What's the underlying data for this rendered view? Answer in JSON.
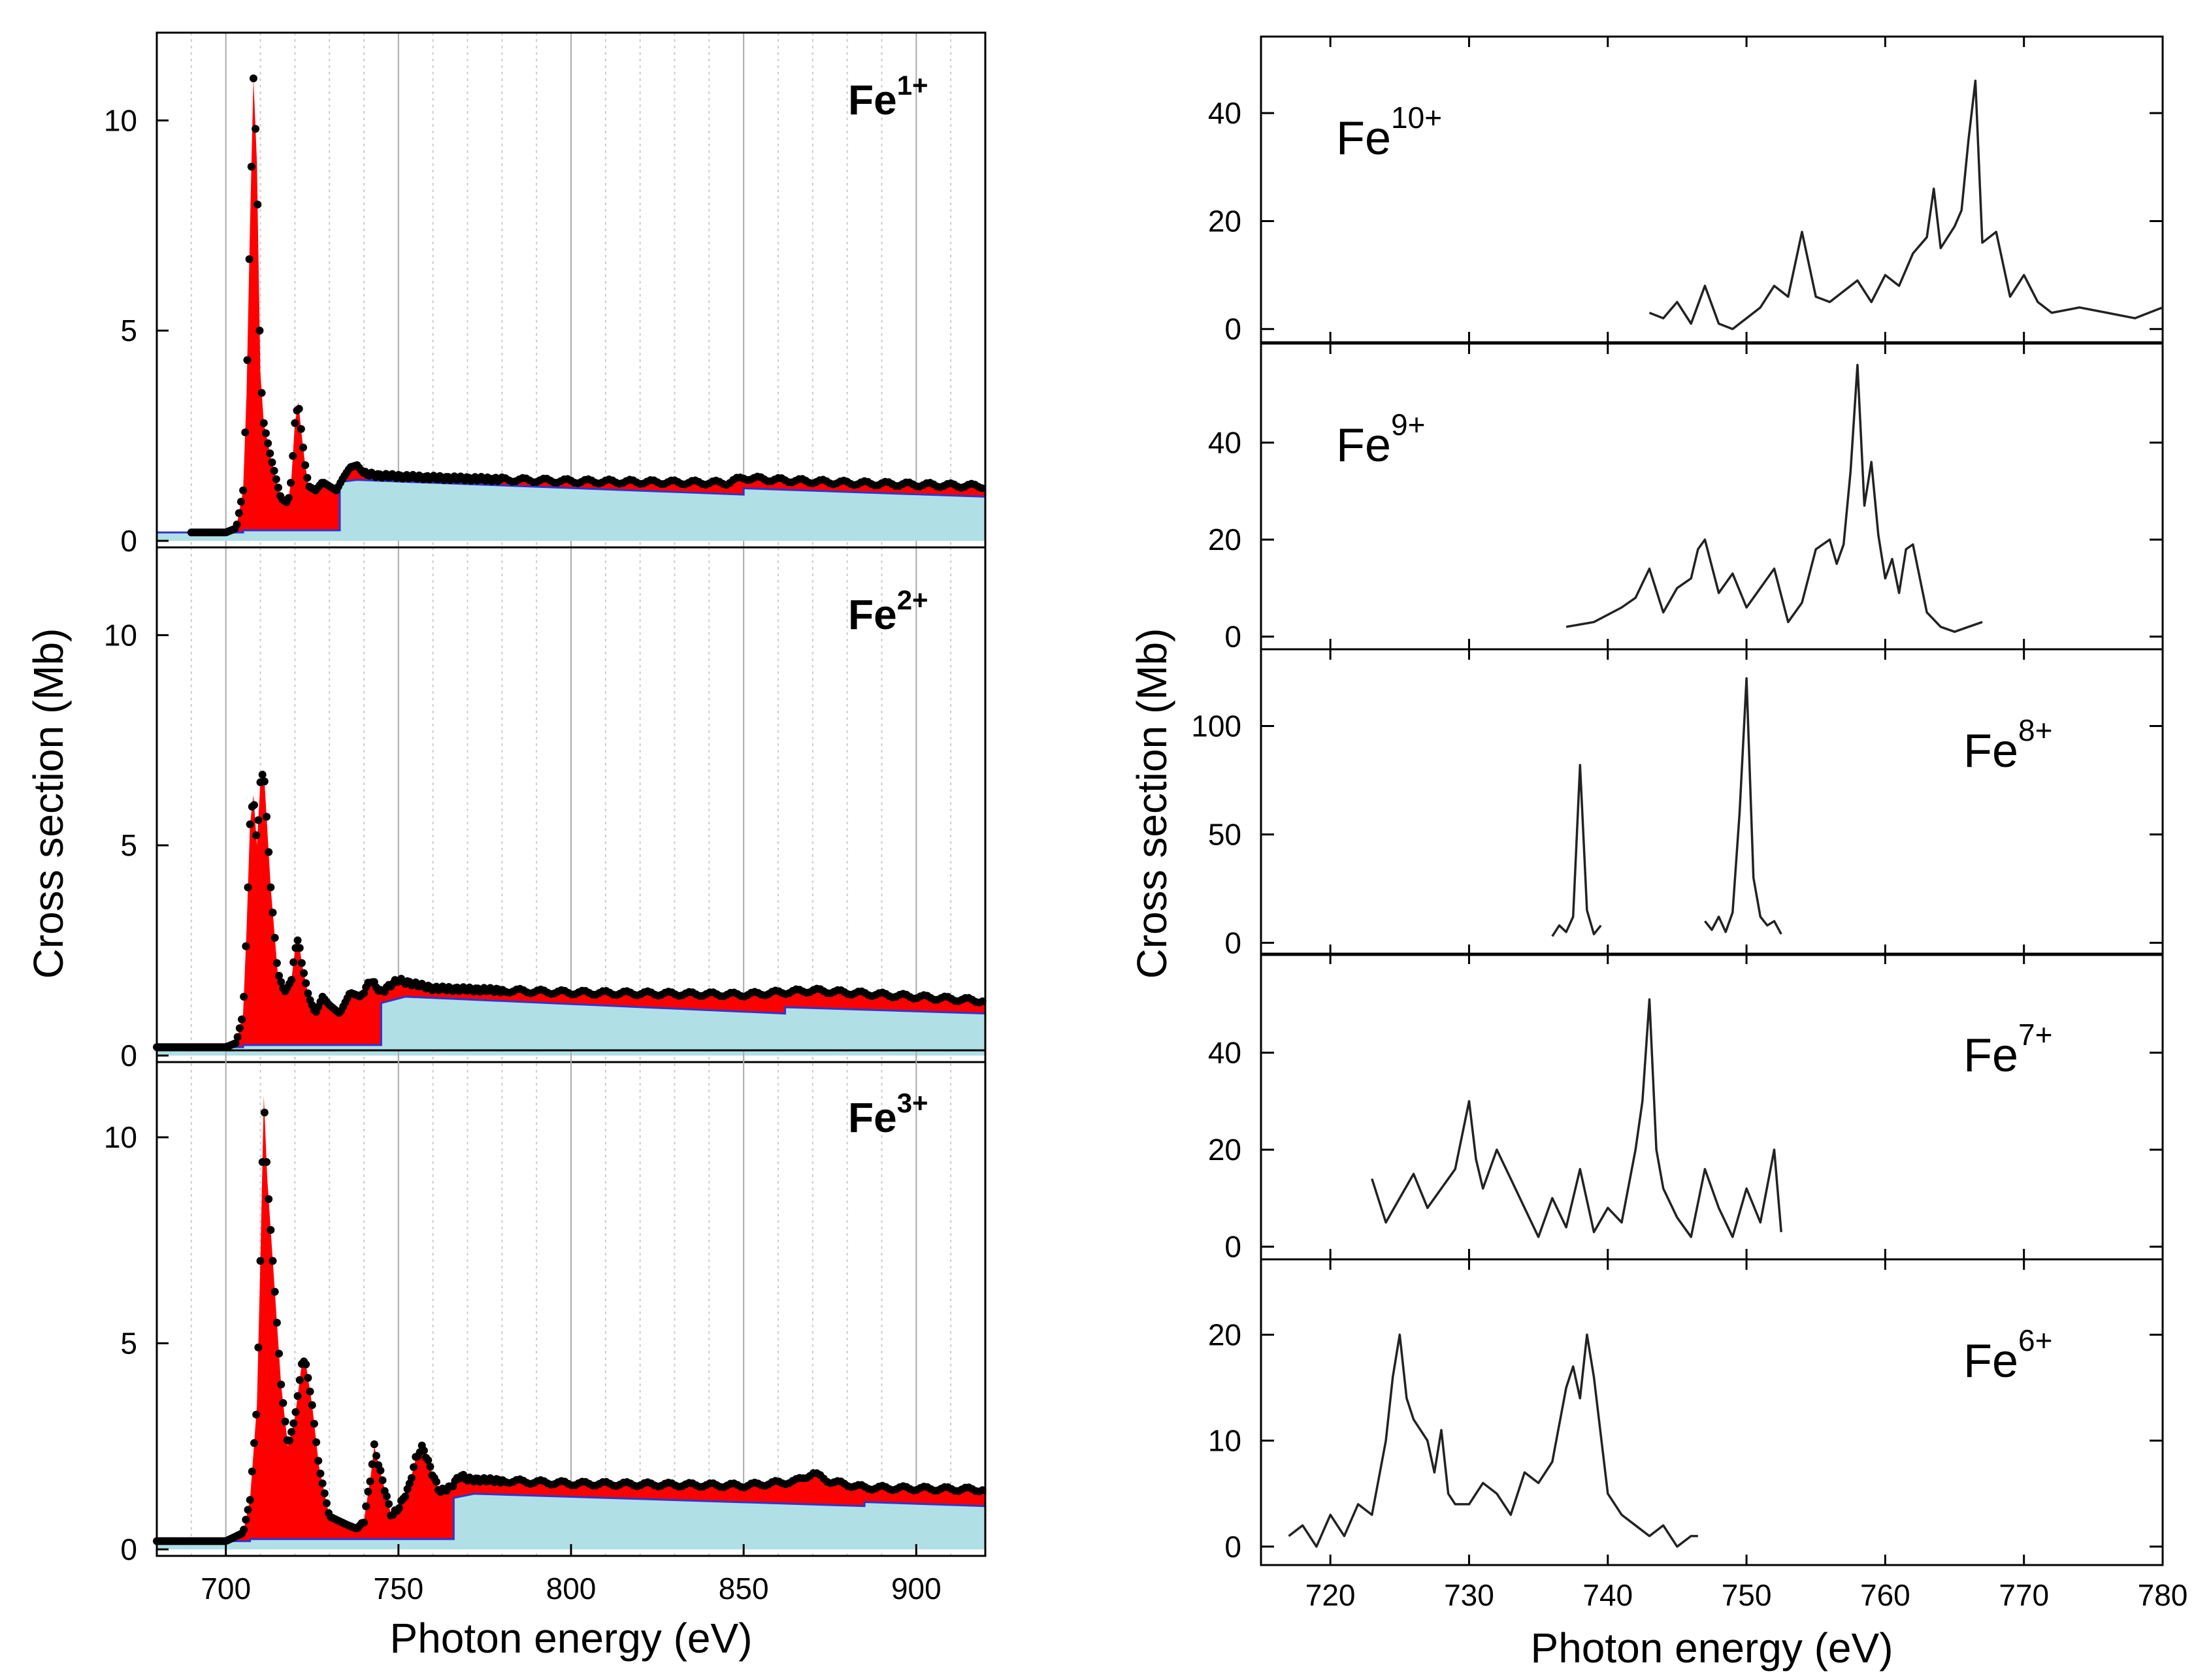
{
  "chart_data": [
    {
      "type": "area",
      "panel_group": "left",
      "xlabel": "Photon energy (eV)",
      "ylabel": "Cross section (Mb)",
      "xlim": [
        680,
        920
      ],
      "x_ticks": [
        700,
        750,
        800,
        850,
        900
      ],
      "x_tick_labels": [
        "700",
        "750",
        "800",
        "850",
        "900"
      ],
      "grid": "vertical",
      "fill_colors": {
        "resonant": "#ff0000",
        "direct": "#b0e0e6",
        "direct_edge": "#3333cc",
        "points": "#000000"
      },
      "panels": [
        {
          "label_base": "Fe",
          "label_charge": "1+",
          "ylim": [
            0,
            12
          ],
          "y_ticks": [
            0,
            5,
            10
          ],
          "y_tick_labels": [
            "0",
            "5",
            "10"
          ],
          "background": {
            "x": [
              680,
              705,
              705,
              733,
              733,
              738,
              850,
              850,
              920
            ],
            "y": [
              0.2,
              0.2,
              0.25,
              0.25,
              1.4,
              1.45,
              1.1,
              1.25,
              1.05
            ]
          },
          "total": {
            "x": [
              680,
              700,
              703,
              705,
              706,
              707,
              708,
              709,
              710,
              711,
              713,
              716,
              718,
              719,
              720,
              721,
              722,
              723,
              724,
              726,
              728,
              730,
              732,
              734,
              736,
              738,
              740,
              745,
              760,
              800,
              845,
              850,
              860,
              880,
              920
            ],
            "y": [
              0.2,
              0.2,
              0.3,
              1.2,
              3.5,
              7.5,
              11.0,
              9.0,
              4.0,
              2.8,
              2.0,
              1.0,
              0.9,
              1.5,
              2.8,
              3.3,
              2.5,
              1.8,
              1.3,
              1.2,
              1.4,
              1.3,
              1.2,
              1.5,
              1.75,
              1.8,
              1.6,
              1.55,
              1.5,
              1.42,
              1.38,
              1.5,
              1.45,
              1.38,
              1.3
            ]
          }
        },
        {
          "label_base": "Fe",
          "label_charge": "2+",
          "ylim": [
            0,
            12
          ],
          "y_ticks": [
            0,
            5,
            10
          ],
          "y_tick_labels": [
            "0",
            "5",
            "10"
          ],
          "background": {
            "x": [
              680,
              705,
              705,
              745,
              745,
              752,
              862,
              862,
              920
            ],
            "y": [
              0.2,
              0.2,
              0.25,
              0.25,
              1.25,
              1.4,
              1.0,
              1.15,
              1.0
            ]
          },
          "total": {
            "x": [
              680,
              690,
              700,
              703,
              705,
              706,
              707,
              708,
              709,
              710,
              711,
              713,
              715,
              717,
              719,
              720,
              721,
              722,
              724,
              726,
              728,
              730,
              733,
              736,
              739,
              742,
              745,
              748,
              750,
              752,
              760,
              800,
              850,
              870,
              900,
              920
            ],
            "y": [
              0.2,
              0.2,
              0.2,
              0.3,
              1.0,
              3.0,
              5.5,
              6.2,
              5.0,
              6.5,
              6.8,
              4.0,
              2.0,
              1.5,
              1.8,
              2.5,
              2.8,
              2.2,
              1.4,
              1.0,
              1.4,
              1.2,
              1.0,
              1.5,
              1.4,
              1.8,
              1.5,
              1.7,
              1.8,
              1.75,
              1.6,
              1.5,
              1.45,
              1.55,
              1.4,
              1.3
            ]
          }
        },
        {
          "label_base": "Fe",
          "label_charge": "3+",
          "ylim": [
            0,
            12
          ],
          "y_ticks": [
            0,
            5,
            10
          ],
          "y_tick_labels": [
            "0",
            "5",
            "10"
          ],
          "background": {
            "x": [
              680,
              707,
              707,
              766,
              766,
              772,
              885,
              885,
              920
            ],
            "y": [
              0.2,
              0.2,
              0.25,
              0.25,
              1.25,
              1.35,
              1.05,
              1.15,
              1.05
            ]
          },
          "total": {
            "x": [
              680,
              690,
              700,
              705,
              707,
              709,
              710,
              711,
              712,
              714,
              716,
              718,
              720,
              722,
              723,
              725,
              727,
              730,
              735,
              738,
              740,
              742,
              743,
              745,
              748,
              750,
              753,
              755,
              757,
              760,
              762,
              765,
              768,
              770,
              800,
              850,
              865,
              870,
              875,
              885,
              920
            ],
            "y": [
              0.2,
              0.2,
              0.2,
              0.4,
              1.2,
              3.5,
              7.0,
              11.0,
              9.0,
              6.5,
              4.0,
              2.5,
              3.2,
              4.5,
              4.6,
              3.5,
              2.0,
              0.8,
              0.6,
              0.5,
              0.7,
              1.8,
              2.5,
              1.8,
              0.8,
              1.0,
              1.5,
              2.2,
              2.5,
              1.8,
              1.4,
              1.5,
              1.8,
              1.7,
              1.6,
              1.55,
              1.65,
              1.85,
              1.65,
              1.5,
              1.45
            ]
          }
        }
      ]
    },
    {
      "type": "line",
      "panel_group": "right",
      "xlabel": "Photon energy (eV)",
      "ylabel": "Cross section (Mb)",
      "xlim": [
        715,
        780
      ],
      "x_ticks": [
        720,
        730,
        740,
        750,
        760,
        770,
        780
      ],
      "x_tick_labels": [
        "720",
        "730",
        "740",
        "750",
        "760",
        "770",
        "780"
      ],
      "grid": "none",
      "line_color": "#222222",
      "panels": [
        {
          "label_base": "Fe",
          "label_charge": "10+",
          "ylim": [
            -1,
            52
          ],
          "y_ticks": [
            0,
            20,
            40
          ],
          "y_tick_labels": [
            "0",
            "20",
            "40"
          ],
          "series": {
            "x": [
              743,
              744,
              745,
              746,
              747,
              748,
              749,
              750,
              751,
              752,
              753,
              754,
              755,
              756,
              757,
              758,
              759,
              760,
              761,
              762,
              763,
              763.5,
              764,
              765,
              765.5,
              766,
              766.5,
              767,
              768,
              769,
              770,
              771,
              772,
              774,
              776,
              778,
              780
            ],
            "y": [
              3,
              2,
              5,
              1,
              8,
              1,
              0,
              2,
              4,
              8,
              6,
              18,
              6,
              5,
              7,
              9,
              5,
              10,
              8,
              14,
              17,
              26,
              15,
              19,
              22,
              35,
              46,
              16,
              18,
              6,
              10,
              5,
              3,
              4,
              3,
              2,
              4
            ]
          }
        },
        {
          "label_base": "Fe",
          "label_charge": "9+",
          "ylim": [
            -1,
            58
          ],
          "y_ticks": [
            0,
            20,
            40
          ],
          "y_tick_labels": [
            "0",
            "20",
            "40"
          ],
          "series": {
            "x": [
              737,
              739,
              741,
              742,
              743,
              744,
              745,
              746,
              746.5,
              747,
              748,
              749,
              750,
              751,
              752,
              753,
              754,
              755,
              756,
              756.5,
              757,
              757.5,
              758,
              758.5,
              759,
              759.5,
              760,
              760.5,
              761,
              761.5,
              762,
              763,
              764,
              765,
              766,
              767
            ],
            "y": [
              2,
              3,
              6,
              8,
              14,
              5,
              10,
              12,
              18,
              20,
              9,
              13,
              6,
              10,
              14,
              3,
              7,
              18,
              20,
              15,
              19,
              34,
              56,
              27,
              36,
              21,
              12,
              16,
              9,
              18,
              19,
              5,
              2,
              1,
              2,
              3
            ]
          }
        },
        {
          "label_base": "Fe",
          "label_charge": "8+",
          "ylim": [
            -2,
            130
          ],
          "y_ticks": [
            0,
            50,
            100
          ],
          "y_tick_labels": [
            "0",
            "50",
            "100"
          ],
          "series_segments": [
            {
              "x": [
                736,
                736.5,
                737,
                737.5,
                738,
                738.5,
                739,
                739.5
              ],
              "y": [
                3,
                8,
                5,
                12,
                82,
                15,
                4,
                8
              ]
            },
            {
              "x": [
                747,
                747.5,
                748,
                748.5,
                749,
                749.5,
                750,
                750.5,
                751,
                751.5,
                752,
                752.5
              ],
              "y": [
                10,
                6,
                12,
                5,
                14,
                60,
                122,
                30,
                12,
                8,
                10,
                4
              ]
            }
          ]
        },
        {
          "label_base": "Fe",
          "label_charge": "7+",
          "ylim": [
            -1,
            58
          ],
          "y_ticks": [
            0,
            20,
            40
          ],
          "y_tick_labels": [
            "0",
            "20",
            "40"
          ],
          "series": {
            "x": [
              723,
              724,
              725,
              726,
              727,
              728,
              729,
              730,
              730.5,
              731,
              732,
              733,
              734,
              735,
              736,
              737,
              738,
              739,
              740,
              741,
              742,
              742.5,
              743,
              743.5,
              744,
              745,
              746,
              747,
              748,
              749,
              750,
              751,
              752,
              752.5
            ],
            "y": [
              14,
              5,
              10,
              15,
              8,
              12,
              16,
              30,
              18,
              12,
              20,
              14,
              8,
              2,
              10,
              4,
              16,
              3,
              8,
              5,
              20,
              30,
              51,
              20,
              12,
              6,
              2,
              16,
              8,
              2,
              12,
              5,
              20,
              3
            ]
          }
        },
        {
          "label_base": "Fe",
          "label_charge": "6+",
          "ylim": [
            -1,
            26
          ],
          "y_ticks": [
            0,
            10,
            20
          ],
          "y_tick_labels": [
            "0",
            "10",
            "20"
          ],
          "series": {
            "x": [
              717,
              718,
              719,
              720,
              721,
              722,
              723,
              724,
              724.5,
              725,
              725.5,
              726,
              727,
              727.5,
              728,
              728.5,
              729,
              730,
              731,
              732,
              733,
              734,
              735,
              736,
              737,
              737.5,
              738,
              738.5,
              739,
              740,
              741,
              742,
              743,
              744,
              745,
              746,
              746.5
            ],
            "y": [
              1,
              2,
              0,
              3,
              1,
              4,
              3,
              10,
              16,
              20,
              14,
              12,
              10,
              7,
              11,
              5,
              4,
              4,
              6,
              5,
              3,
              7,
              6,
              8,
              15,
              17,
              14,
              20,
              16,
              5,
              3,
              2,
              1,
              2,
              0,
              1,
              1
            ]
          }
        }
      ]
    }
  ]
}
